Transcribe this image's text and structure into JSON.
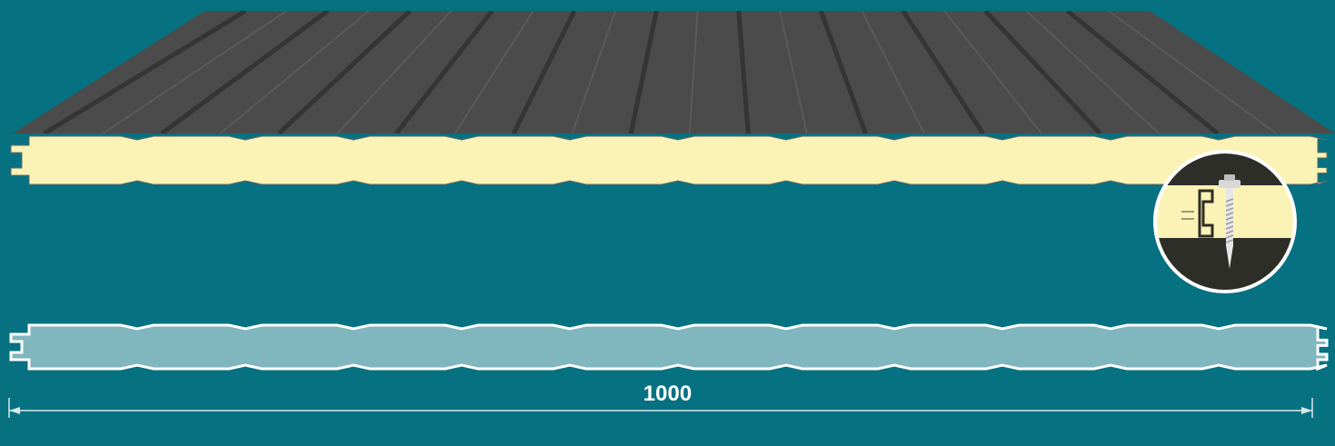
{
  "dimension": {
    "width_label": "1000"
  },
  "colors": {
    "background": "#067181",
    "metal_sheet": "#4b4b4b",
    "metal_rib": "#383838",
    "foam_core": "#fbf3b5",
    "section_fill": "#80b6be",
    "section_outline": "#ffffff",
    "screw": "#d8d8d8",
    "detail_dark": "#2e2e28"
  },
  "icons": [
    "screw-fastener-icon"
  ]
}
